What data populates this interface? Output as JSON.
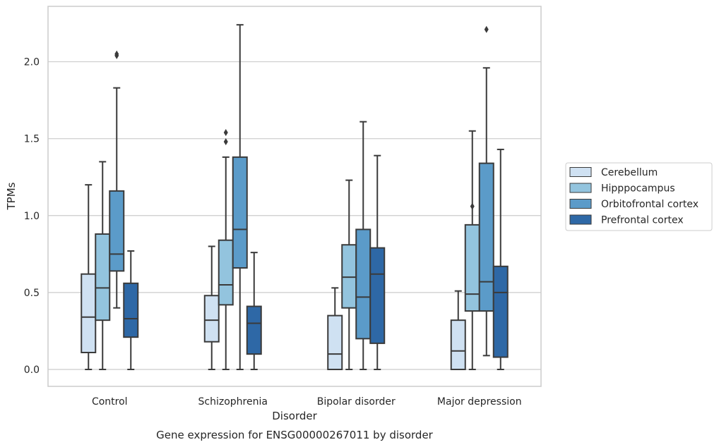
{
  "caption": "Gene expression for ENSG00000267011 by disorder",
  "chart_data": {
    "type": "boxplot",
    "xlabel": "Disorder",
    "ylabel": "TPMs",
    "ylim": [
      -0.11,
      2.36
    ],
    "yticks": [
      0.0,
      0.5,
      1.0,
      1.5,
      2.0
    ],
    "ytick_labels": [
      "0.0",
      "0.5",
      "1.0",
      "1.5",
      "2.0"
    ],
    "grid": "horizontal",
    "legend_position": "right",
    "categories": [
      "Control",
      "Schizophrenia",
      "Bipolar disorder",
      "Major depression"
    ],
    "series": [
      {
        "name": "Cerebellum",
        "color": "#cfe1f2",
        "boxes": [
          {
            "whislo": 0.0,
            "q1": 0.11,
            "med": 0.34,
            "q3": 0.62,
            "whishi": 1.2,
            "fliers": []
          },
          {
            "whislo": 0.0,
            "q1": 0.18,
            "med": 0.32,
            "q3": 0.48,
            "whishi": 0.8,
            "fliers": []
          },
          {
            "whislo": 0.0,
            "q1": 0.0,
            "med": 0.1,
            "q3": 0.35,
            "whishi": 0.53,
            "fliers": []
          },
          {
            "whislo": 0.0,
            "q1": 0.0,
            "med": 0.12,
            "q3": 0.32,
            "whishi": 0.51,
            "fliers": []
          }
        ]
      },
      {
        "name": "Hipppocampus",
        "color": "#93c4de",
        "boxes": [
          {
            "whislo": 0.0,
            "q1": 0.32,
            "med": 0.53,
            "q3": 0.88,
            "whishi": 1.35,
            "fliers": []
          },
          {
            "whislo": 0.0,
            "q1": 0.42,
            "med": 0.55,
            "q3": 0.84,
            "whishi": 1.38,
            "fliers": [
              1.48,
              1.54
            ]
          },
          {
            "whislo": 0.0,
            "q1": 0.4,
            "med": 0.6,
            "q3": 0.81,
            "whishi": 1.23,
            "fliers": []
          },
          {
            "whislo": 0.0,
            "q1": 0.38,
            "med": 0.49,
            "q3": 0.94,
            "whishi": 1.55,
            "fliers": [
              1.06
            ]
          }
        ]
      },
      {
        "name": "Orbitofrontal cortex",
        "color": "#5b9bc9",
        "boxes": [
          {
            "whislo": 0.4,
            "q1": 0.64,
            "med": 0.75,
            "q3": 1.16,
            "whishi": 1.83,
            "fliers": [
              2.04,
              2.05
            ]
          },
          {
            "whislo": 0.0,
            "q1": 0.66,
            "med": 0.91,
            "q3": 1.38,
            "whishi": 2.24,
            "fliers": []
          },
          {
            "whislo": 0.0,
            "q1": 0.2,
            "med": 0.47,
            "q3": 0.91,
            "whishi": 1.61,
            "fliers": []
          },
          {
            "whislo": 0.09,
            "q1": 0.38,
            "med": 0.57,
            "q3": 1.34,
            "whishi": 1.96,
            "fliers": [
              2.21
            ]
          }
        ]
      },
      {
        "name": "Prefrontal cortex",
        "color": "#2e68a6",
        "boxes": [
          {
            "whislo": 0.0,
            "q1": 0.21,
            "med": 0.33,
            "q3": 0.56,
            "whishi": 0.77,
            "fliers": []
          },
          {
            "whislo": 0.0,
            "q1": 0.1,
            "med": 0.3,
            "q3": 0.41,
            "whishi": 0.76,
            "fliers": []
          },
          {
            "whislo": 0.0,
            "q1": 0.17,
            "med": 0.62,
            "q3": 0.79,
            "whishi": 1.39,
            "fliers": []
          },
          {
            "whislo": 0.0,
            "q1": 0.08,
            "med": 0.5,
            "q3": 0.67,
            "whishi": 1.43,
            "fliers": []
          }
        ]
      }
    ],
    "colors": {
      "box_edge": "#3a3a3a",
      "grid": "#cccccc",
      "frame": "#cccccc",
      "text": "#262626"
    }
  }
}
